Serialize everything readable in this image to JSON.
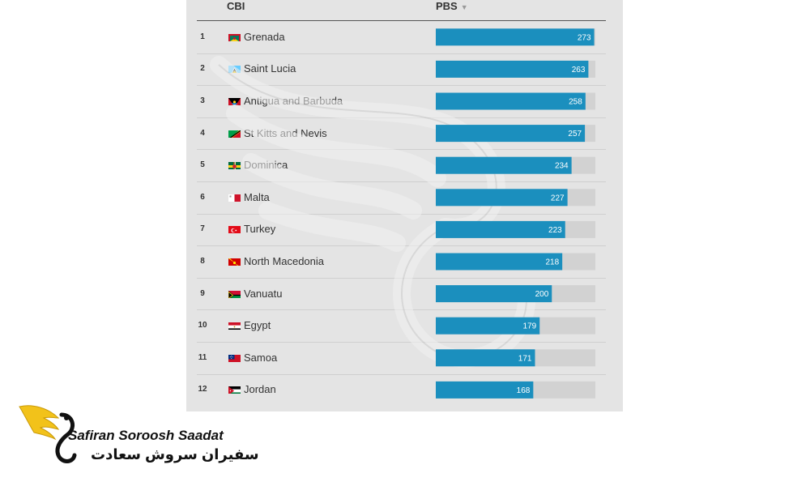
{
  "columns": {
    "cbi": "CBI",
    "pbs": "PBS",
    "sort_indicator": "▼"
  },
  "accent_color": "#1b8fbe",
  "track_color": "#d2d2d2",
  "chart_data": {
    "type": "bar",
    "orientation": "horizontal",
    "xlim": [
      0,
      275
    ],
    "grid": false,
    "rows": [
      {
        "rank": "1",
        "country": "Grenada",
        "flag": "grenada",
        "value": 273
      },
      {
        "rank": "2",
        "country": "Saint Lucia",
        "flag": "saint-lucia",
        "value": 263
      },
      {
        "rank": "3",
        "country": "Antigua and Barbuda",
        "flag": "antigua-and-barbuda",
        "value": 258
      },
      {
        "rank": "4",
        "country": "St Kitts and Nevis",
        "flag": "st-kitts-and-nevis",
        "value": 257
      },
      {
        "rank": "5",
        "country": "Dominica",
        "flag": "dominica",
        "value": 234
      },
      {
        "rank": "6",
        "country": "Malta",
        "flag": "malta",
        "value": 227
      },
      {
        "rank": "7",
        "country": "Turkey",
        "flag": "turkey",
        "value": 223
      },
      {
        "rank": "8",
        "country": "North Macedonia",
        "flag": "north-macedonia",
        "value": 218
      },
      {
        "rank": "9",
        "country": "Vanuatu",
        "flag": "vanuatu",
        "value": 200
      },
      {
        "rank": "10",
        "country": "Egypt",
        "flag": "egypt",
        "value": 179
      },
      {
        "rank": "11",
        "country": "Samoa",
        "flag": "samoa",
        "value": 171
      },
      {
        "rank": "12",
        "country": "Jordan",
        "flag": "jordan",
        "value": 168
      }
    ]
  },
  "logo": {
    "name": "Safiran Soroosh Saadat",
    "persian": "سفیران سروش سعادت"
  }
}
